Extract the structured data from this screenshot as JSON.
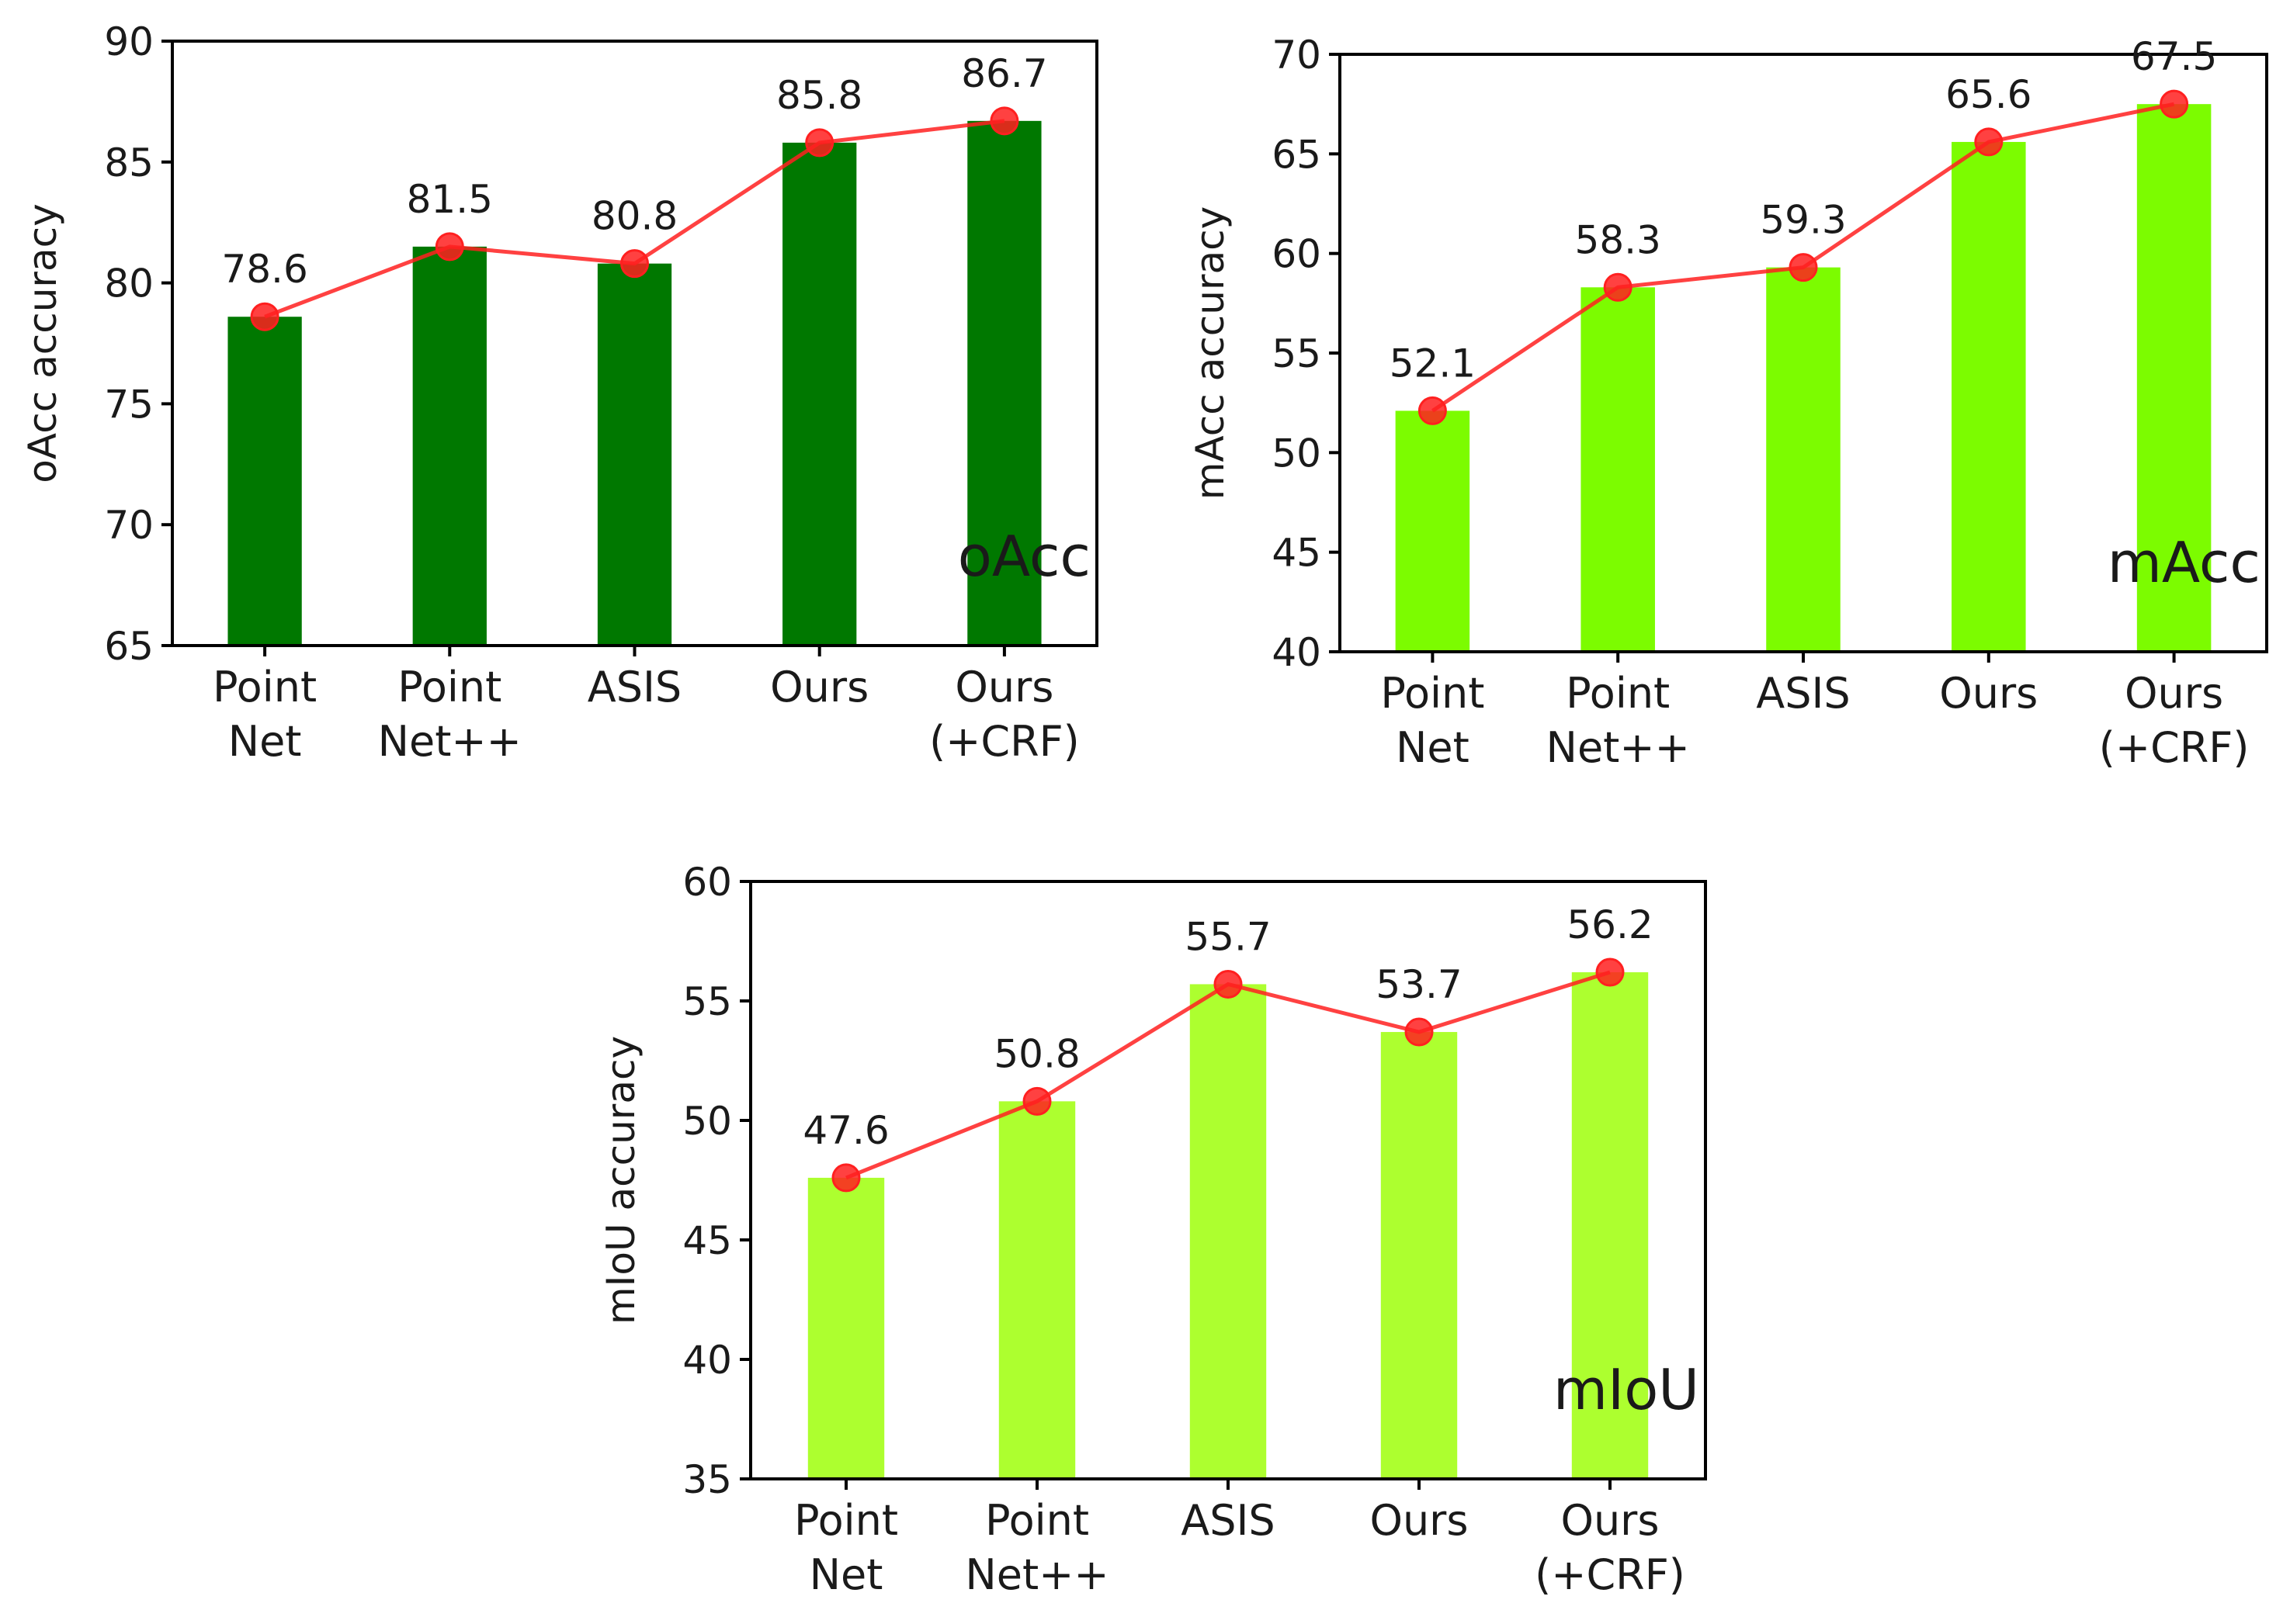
{
  "chart_data": [
    {
      "type": "bar",
      "name": "oacc",
      "title": "",
      "xlabel": "",
      "ylabel": "oAcc accuracy",
      "corner_label": "oAcc",
      "categories": [
        [
          "Point",
          "Net"
        ],
        [
          "Point",
          "Net++"
        ],
        [
          "ASIS"
        ],
        [
          "Ours"
        ],
        [
          "Ours",
          "(+CRF)"
        ]
      ],
      "values": [
        78.6,
        81.5,
        80.8,
        85.8,
        86.7
      ],
      "data_labels": [
        "78.6",
        "81.5",
        "80.8",
        "85.8",
        "86.7"
      ],
      "ylim": [
        65,
        90
      ],
      "yticks": [
        65,
        70,
        75,
        80,
        85,
        90
      ],
      "bar_color": "#007800",
      "line_color": "#ff2020",
      "overlay": "line-with-markers",
      "grid": false
    },
    {
      "type": "bar",
      "name": "macc",
      "title": "",
      "xlabel": "",
      "ylabel": "mAcc accuracy",
      "corner_label": "mAcc",
      "categories": [
        [
          "Point",
          "Net"
        ],
        [
          "Point",
          "Net++"
        ],
        [
          "ASIS"
        ],
        [
          "Ours"
        ],
        [
          "Ours",
          "(+CRF)"
        ]
      ],
      "values": [
        52.1,
        58.3,
        59.3,
        65.6,
        67.5
      ],
      "data_labels": [
        "52.1",
        "58.3",
        "59.3",
        "65.6",
        "67.5"
      ],
      "ylim": [
        40,
        70
      ],
      "yticks": [
        40,
        45,
        50,
        55,
        60,
        65,
        70
      ],
      "bar_color": "#7cfc00",
      "line_color": "#ff2020",
      "overlay": "line-with-markers",
      "grid": false
    },
    {
      "type": "bar",
      "name": "miou",
      "title": "",
      "xlabel": "",
      "ylabel": "mIoU accuracy",
      "corner_label": "mIoU",
      "categories": [
        [
          "Point",
          "Net"
        ],
        [
          "Point",
          "Net++"
        ],
        [
          "ASIS"
        ],
        [
          "Ours"
        ],
        [
          "Ours",
          "(+CRF)"
        ]
      ],
      "values": [
        47.6,
        50.8,
        55.7,
        53.7,
        56.2
      ],
      "data_labels": [
        "47.6",
        "50.8",
        "55.7",
        "53.7",
        "56.2"
      ],
      "ylim": [
        35,
        60
      ],
      "yticks": [
        35,
        40,
        45,
        50,
        55,
        60
      ],
      "bar_color": "#adff2f",
      "line_color": "#ff2020",
      "overlay": "line-with-markers",
      "grid": false
    }
  ]
}
